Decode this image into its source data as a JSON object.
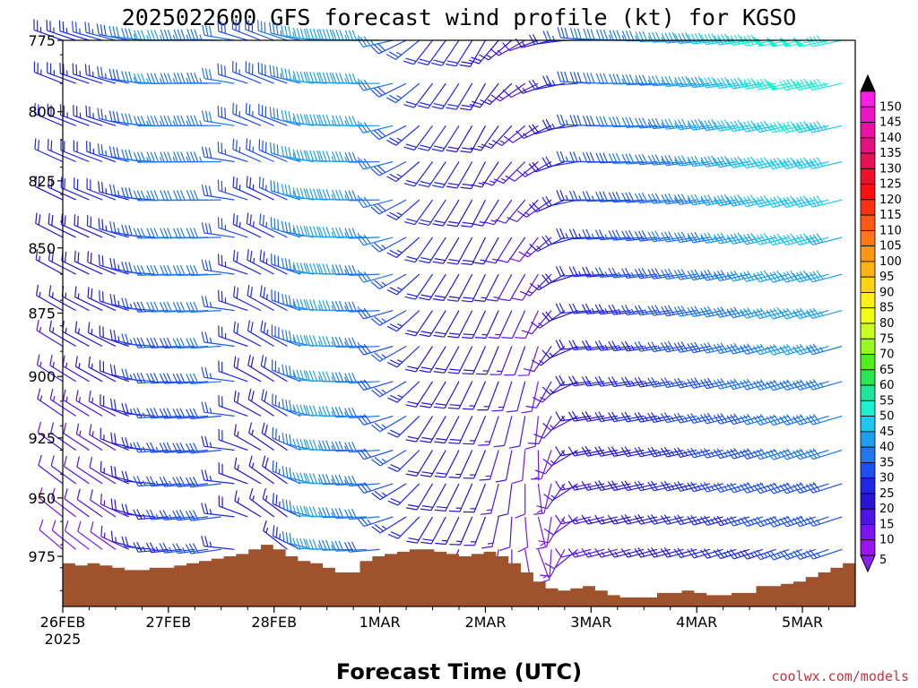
{
  "chart_data": {
    "type": "wind-barb-profile",
    "title": "2025022600 GFS forecast wind profile (kt) for KGSO",
    "xlabel": "Forecast Time (UTC)",
    "ylabel": "",
    "x_tick_labels": [
      "26FEB",
      "27FEB",
      "28FEB",
      "1MAR",
      "2MAR",
      "3MAR",
      "4MAR",
      "5MAR"
    ],
    "x_tick_sublabel": "2025",
    "x_range_hours": [
      0,
      180
    ],
    "y_tick_labels": [
      "775",
      "800",
      "825",
      "850",
      "875",
      "900",
      "925",
      "950",
      "975"
    ],
    "y_range_hpa": [
      775,
      997
    ],
    "y_scale": "log-pressure",
    "time_step_hours": 3,
    "pressure_levels_hpa": [
      775,
      790,
      805,
      818,
      832,
      846,
      860,
      874,
      888,
      902,
      916,
      930,
      944,
      958,
      972
    ],
    "colorbar": {
      "labels": [
        "150",
        "145",
        "140",
        "135",
        "130",
        "125",
        "120",
        "115",
        "110",
        "105",
        "100",
        "95",
        "90",
        "85",
        "80",
        "75",
        "70",
        "65",
        "60",
        "55",
        "50",
        "45",
        "40",
        "35",
        "30",
        "25",
        "20",
        "15",
        "10",
        "5"
      ],
      "colors": [
        "#fa1ee6",
        "#f014c8",
        "#ea11a6",
        "#e6107e",
        "#e81155",
        "#f01028",
        "#ff1010",
        "#fa3214",
        "#ff5a14",
        "#ff7814",
        "#ff9614",
        "#ffb414",
        "#ffd214",
        "#fff014",
        "#f0ff14",
        "#c8ff1e",
        "#96fa1e",
        "#50f01e",
        "#28e650",
        "#1ee69a",
        "#1ef0d2",
        "#1ec8f0",
        "#1ea0f0",
        "#1e78f0",
        "#1e50f0",
        "#1e28e6",
        "#2814d2",
        "#5014e6",
        "#7a14f0",
        "#9a14f0"
      ],
      "over_color": "#000000",
      "under_color": "#8c1ef0"
    },
    "terrain_color": "#a0522d",
    "terrain_surface_hpa": [
      978,
      979,
      978,
      979,
      980,
      981,
      981,
      980,
      980,
      979,
      978,
      977,
      976,
      975,
      974,
      972,
      970,
      972,
      975,
      977,
      978,
      980,
      982,
      982,
      977,
      975,
      974,
      973,
      972,
      972,
      973,
      974,
      975,
      974,
      973,
      975,
      978,
      982,
      986,
      989,
      990,
      989,
      988,
      990,
      992,
      993,
      993,
      993,
      991,
      991,
      990,
      991,
      992,
      992,
      991,
      991,
      988,
      988,
      987,
      986,
      984,
      982,
      980,
      978
    ],
    "wind_keyframes": [
      {
        "h": 0,
        "spd_low": 8,
        "spd_high": 24,
        "dir_low": 310,
        "dir_high": 290
      },
      {
        "h": 12,
        "spd_low": 10,
        "spd_high": 26,
        "dir_low": 305,
        "dir_high": 285
      },
      {
        "h": 24,
        "spd_low": 24,
        "spd_high": 36,
        "dir_low": 265,
        "dir_high": 270
      },
      {
        "h": 36,
        "spd_low": 28,
        "spd_high": 34,
        "dir_low": 262,
        "dir_high": 272
      },
      {
        "h": 44,
        "spd_low": 14,
        "spd_high": 28,
        "dir_low": 300,
        "dir_high": 292
      },
      {
        "h": 50,
        "spd_low": 14,
        "spd_high": 30,
        "dir_low": 312,
        "dir_high": 290
      },
      {
        "h": 60,
        "spd_low": 38,
        "spd_high": 40,
        "dir_low": 272,
        "dir_high": 274
      },
      {
        "h": 72,
        "spd_low": 30,
        "spd_high": 36,
        "dir_low": 265,
        "dir_high": 270
      },
      {
        "h": 84,
        "spd_low": 18,
        "spd_high": 22,
        "dir_low": 210,
        "dir_high": 218
      },
      {
        "h": 96,
        "spd_low": 16,
        "spd_high": 20,
        "dir_low": 200,
        "dir_high": 210
      },
      {
        "h": 108,
        "spd_low": 6,
        "spd_high": 12,
        "dir_low": 160,
        "dir_high": 250
      },
      {
        "h": 120,
        "spd_low": 12,
        "spd_high": 30,
        "dir_low": 255,
        "dir_high": 275
      },
      {
        "h": 144,
        "spd_low": 20,
        "spd_high": 38,
        "dir_low": 255,
        "dir_high": 265
      },
      {
        "h": 168,
        "spd_low": 26,
        "spd_high": 50,
        "dir_low": 250,
        "dir_high": 258
      },
      {
        "h": 180,
        "spd_low": 26,
        "spd_high": 46,
        "dir_low": 252,
        "dir_high": 258
      }
    ]
  },
  "credit": "coolwx.com/models"
}
